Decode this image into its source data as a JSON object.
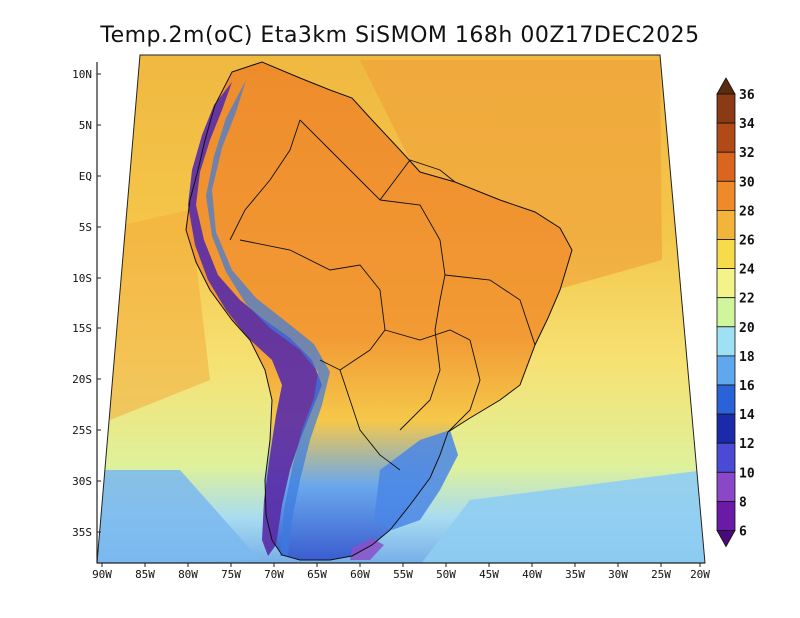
{
  "title": "Temp.2m(oC) Eta3km SiSMOM 168h 00Z17DEC2025",
  "map": {
    "lat_ticks": [
      "10N",
      "5N",
      "EQ",
      "5S",
      "10S",
      "15S",
      "20S",
      "25S",
      "30S",
      "35S"
    ],
    "lon_ticks": [
      "90W",
      "85W",
      "80W",
      "75W",
      "70W",
      "65W",
      "60W",
      "55W",
      "50W",
      "45W",
      "40W",
      "35W",
      "30W",
      "25W",
      "20W"
    ],
    "lat_range": [
      -38,
      11
    ],
    "lon_range": [
      -91,
      -20
    ],
    "ocean_gradient": [
      "#f2c246",
      "#f5d85c",
      "#f6ec7a",
      "#dff29a",
      "#a9e0f2",
      "#6fa8e8"
    ],
    "land_color": "#f29d3a"
  },
  "colorbar": {
    "labels": [
      "36",
      "34",
      "32",
      "30",
      "28",
      "26",
      "24",
      "22",
      "20",
      "18",
      "16",
      "14",
      "12",
      "10",
      "8",
      "6"
    ],
    "colors": [
      "#5c2a0e",
      "#8a3a14",
      "#b24a17",
      "#d9651f",
      "#ef8a2a",
      "#f3b43a",
      "#f6dc4a",
      "#f4f38a",
      "#cff59d",
      "#9ee1f5",
      "#5fa8ee",
      "#2a62d8",
      "#1a2aa8",
      "#4a4ad6",
      "#8a48c8",
      "#6a1aa6",
      "#4a0a7a"
    ]
  }
}
